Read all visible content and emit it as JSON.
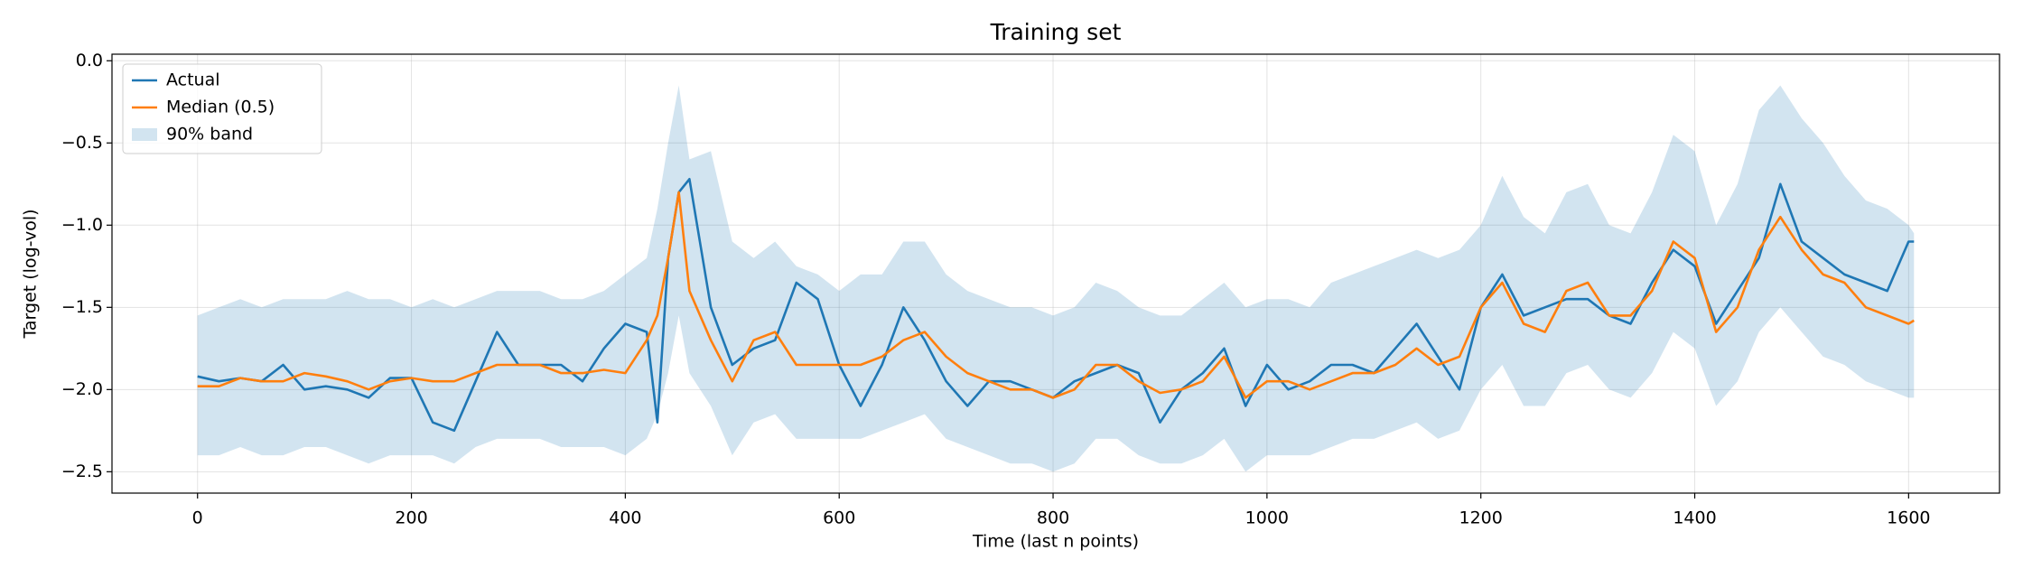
{
  "chart_data": {
    "type": "line",
    "title": "Training set",
    "xlabel": "Time (last n points)",
    "ylabel": "Target (log-vol)",
    "x": [
      0,
      20,
      40,
      60,
      80,
      100,
      120,
      140,
      160,
      180,
      200,
      220,
      240,
      260,
      280,
      300,
      320,
      340,
      360,
      380,
      400,
      420,
      430,
      440,
      450,
      460,
      480,
      500,
      520,
      540,
      560,
      580,
      600,
      620,
      640,
      660,
      680,
      700,
      720,
      740,
      760,
      780,
      800,
      820,
      840,
      860,
      880,
      900,
      920,
      940,
      960,
      980,
      1000,
      1020,
      1040,
      1060,
      1080,
      1100,
      1120,
      1140,
      1160,
      1180,
      1200,
      1220,
      1240,
      1260,
      1280,
      1300,
      1320,
      1340,
      1360,
      1380,
      1400,
      1420,
      1440,
      1460,
      1480,
      1500,
      1520,
      1540,
      1560,
      1580,
      1600,
      1605
    ],
    "series": [
      {
        "name": "Actual",
        "color": "#1f77b4",
        "values": [
          -1.92,
          -1.95,
          -1.93,
          -1.95,
          -1.85,
          -2.0,
          -1.98,
          -2.0,
          -2.05,
          -1.93,
          -1.93,
          -2.2,
          -2.25,
          -1.95,
          -1.65,
          -1.85,
          -1.85,
          -1.85,
          -1.95,
          -1.75,
          -1.6,
          -1.65,
          -2.2,
          -1.2,
          -0.8,
          -0.72,
          -1.5,
          -1.85,
          -1.75,
          -1.7,
          -1.35,
          -1.45,
          -1.85,
          -2.1,
          -1.85,
          -1.5,
          -1.7,
          -1.95,
          -2.1,
          -1.95,
          -1.95,
          -2.0,
          -2.05,
          -1.95,
          -1.9,
          -1.85,
          -1.9,
          -2.2,
          -2.0,
          -1.9,
          -1.75,
          -2.1,
          -1.85,
          -2.0,
          -1.95,
          -1.85,
          -1.85,
          -1.9,
          -1.75,
          -1.6,
          -1.8,
          -2.0,
          -1.5,
          -1.3,
          -1.55,
          -1.5,
          -1.45,
          -1.45,
          -1.55,
          -1.6,
          -1.35,
          -1.15,
          -1.25,
          -1.6,
          -1.4,
          -1.2,
          -0.75,
          -1.1,
          -1.2,
          -1.3,
          -1.35,
          -1.4,
          -1.1,
          -1.1
        ]
      },
      {
        "name": "Median (0.5)",
        "color": "#ff7f0e",
        "values": [
          -1.98,
          -1.98,
          -1.93,
          -1.95,
          -1.95,
          -1.9,
          -1.92,
          -1.95,
          -2.0,
          -1.95,
          -1.93,
          -1.95,
          -1.95,
          -1.9,
          -1.85,
          -1.85,
          -1.85,
          -1.9,
          -1.9,
          -1.88,
          -1.9,
          -1.7,
          -1.55,
          -1.2,
          -0.8,
          -1.4,
          -1.7,
          -1.95,
          -1.7,
          -1.65,
          -1.85,
          -1.85,
          -1.85,
          -1.85,
          -1.8,
          -1.7,
          -1.65,
          -1.8,
          -1.9,
          -1.95,
          -2.0,
          -2.0,
          -2.05,
          -2.0,
          -1.85,
          -1.85,
          -1.95,
          -2.02,
          -2.0,
          -1.95,
          -1.8,
          -2.05,
          -1.95,
          -1.95,
          -2.0,
          -1.95,
          -1.9,
          -1.9,
          -1.85,
          -1.75,
          -1.85,
          -1.8,
          -1.5,
          -1.35,
          -1.6,
          -1.65,
          -1.4,
          -1.35,
          -1.55,
          -1.55,
          -1.4,
          -1.1,
          -1.2,
          -1.65,
          -1.5,
          -1.15,
          -0.95,
          -1.15,
          -1.3,
          -1.35,
          -1.5,
          -1.55,
          -1.6,
          -1.58
        ]
      }
    ],
    "band": {
      "name": "90% band",
      "color": "#1f77b4",
      "upper": [
        -1.55,
        -1.5,
        -1.45,
        -1.5,
        -1.45,
        -1.45,
        -1.45,
        -1.4,
        -1.45,
        -1.45,
        -1.5,
        -1.45,
        -1.5,
        -1.45,
        -1.4,
        -1.4,
        -1.4,
        -1.45,
        -1.45,
        -1.4,
        -1.3,
        -1.2,
        -0.9,
        -0.5,
        -0.15,
        -0.6,
        -0.55,
        -1.1,
        -1.2,
        -1.1,
        -1.25,
        -1.3,
        -1.4,
        -1.3,
        -1.3,
        -1.1,
        -1.1,
        -1.3,
        -1.4,
        -1.45,
        -1.5,
        -1.5,
        -1.55,
        -1.5,
        -1.35,
        -1.4,
        -1.5,
        -1.55,
        -1.55,
        -1.45,
        -1.35,
        -1.5,
        -1.45,
        -1.45,
        -1.5,
        -1.35,
        -1.3,
        -1.25,
        -1.2,
        -1.15,
        -1.2,
        -1.15,
        -1.0,
        -0.7,
        -0.95,
        -1.05,
        -0.8,
        -0.75,
        -1.0,
        -1.05,
        -0.8,
        -0.45,
        -0.55,
        -1.0,
        -0.75,
        -0.3,
        -0.15,
        -0.35,
        -0.5,
        -0.7,
        -0.85,
        -0.9,
        -1.0,
        -1.05
      ],
      "lower": [
        -2.4,
        -2.4,
        -2.35,
        -2.4,
        -2.4,
        -2.35,
        -2.35,
        -2.4,
        -2.45,
        -2.4,
        -2.4,
        -2.4,
        -2.45,
        -2.35,
        -2.3,
        -2.3,
        -2.3,
        -2.35,
        -2.35,
        -2.35,
        -2.4,
        -2.3,
        -2.15,
        -1.9,
        -1.55,
        -1.9,
        -2.1,
        -2.4,
        -2.2,
        -2.15,
        -2.3,
        -2.3,
        -2.3,
        -2.3,
        -2.25,
        -2.2,
        -2.15,
        -2.3,
        -2.35,
        -2.4,
        -2.45,
        -2.45,
        -2.5,
        -2.45,
        -2.3,
        -2.3,
        -2.4,
        -2.45,
        -2.45,
        -2.4,
        -2.3,
        -2.5,
        -2.4,
        -2.4,
        -2.4,
        -2.35,
        -2.3,
        -2.3,
        -2.25,
        -2.2,
        -2.3,
        -2.25,
        -2.0,
        -1.85,
        -2.1,
        -2.1,
        -1.9,
        -1.85,
        -2.0,
        -2.05,
        -1.9,
        -1.65,
        -1.75,
        -2.1,
        -1.95,
        -1.65,
        -1.5,
        -1.65,
        -1.8,
        -1.85,
        -1.95,
        -2.0,
        -2.05,
        -2.05
      ]
    },
    "xlim": [
      -80,
      1685
    ],
    "ylim": [
      -2.63,
      0.04
    ],
    "xticks": [
      0,
      200,
      400,
      600,
      800,
      1000,
      1200,
      1400,
      1600
    ],
    "yticks": [
      {
        "value": -2.5,
        "label": "−2.5"
      },
      {
        "value": -2.0,
        "label": "−2.0"
      },
      {
        "value": -1.5,
        "label": "−1.5"
      },
      {
        "value": -1.0,
        "label": "−1.0"
      },
      {
        "value": -0.5,
        "label": "−0.5"
      },
      {
        "value": 0.0,
        "label": "0.0"
      }
    ],
    "grid": true,
    "legend": "upper left"
  }
}
